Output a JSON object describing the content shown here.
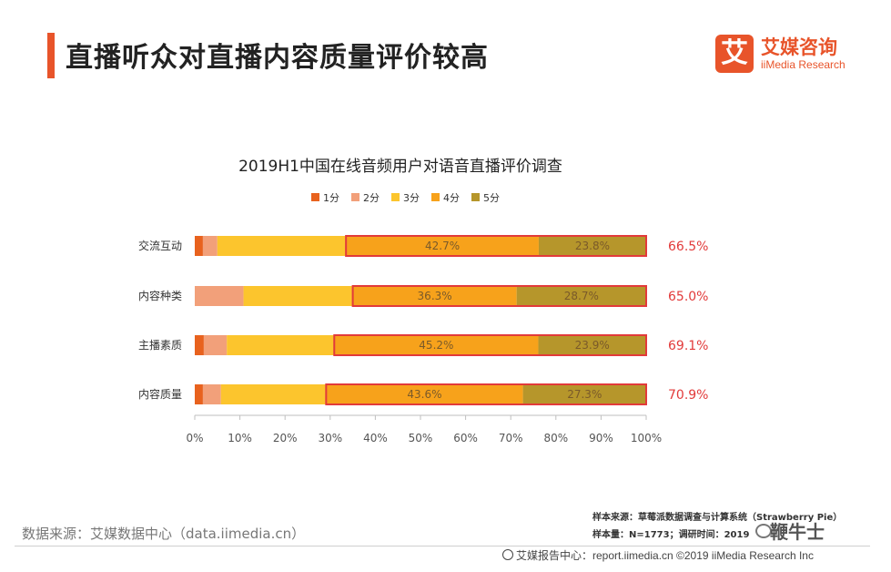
{
  "header": {
    "title": "直播听众对直播内容质量评价较高",
    "accent_color": "#e8542a"
  },
  "logo": {
    "mark": "艾",
    "name_cn": "艾媒咨询",
    "name_en": "iiMedia Research",
    "color": "#e8542a"
  },
  "chart_data": {
    "type": "bar",
    "orientation": "horizontal",
    "stacked": true,
    "title": "2019H1中国在线音频用户对语音直播评价调查",
    "categories": [
      "交流互动",
      "内容种类",
      "主播素质",
      "内容质量"
    ],
    "series": [
      {
        "name": "1分",
        "color": "#e8621e",
        "values": [
          1.8,
          0.0,
          2.0,
          1.8
        ]
      },
      {
        "name": "2分",
        "color": "#f2a07a",
        "values": [
          3.2,
          10.8,
          5.1,
          4.0
        ]
      },
      {
        "name": "3分",
        "color": "#fcc52d",
        "values": [
          28.5,
          24.2,
          23.8,
          23.3
        ]
      },
      {
        "name": "4分",
        "color": "#f7a21b",
        "values": [
          42.7,
          36.3,
          45.2,
          43.6
        ],
        "labels": [
          "42.7%",
          "36.3%",
          "45.2%",
          "43.6%"
        ]
      },
      {
        "name": "5分",
        "color": "#b6962b",
        "values": [
          23.8,
          28.7,
          23.9,
          27.3
        ],
        "labels": [
          "23.8%",
          "28.7%",
          "23.9%",
          "27.3%"
        ]
      }
    ],
    "highlight_totals": [
      "66.5%",
      "65.0%",
      "69.1%",
      "70.9%"
    ],
    "highlight_color": "#e23a3a",
    "xlim": [
      0,
      100
    ],
    "x_ticks": [
      "0%",
      "10%",
      "20%",
      "30%",
      "40%",
      "50%",
      "60%",
      "70%",
      "80%",
      "90%",
      "100%"
    ],
    "legend_position": "top",
    "grid": false
  },
  "footer": {
    "source": "数据来源：艾媒数据中心（data.iimedia.cn）",
    "sample_source": "样本来源：草莓派数据调查与计算系统（Strawberry Pie）",
    "sample_size": "样本量：N=1773；调研时间：2019",
    "watermark": "鞭牛士",
    "report_center": "艾媒报告中心：report.iimedia.cn  ©2019  iiMedia Research  Inc"
  }
}
